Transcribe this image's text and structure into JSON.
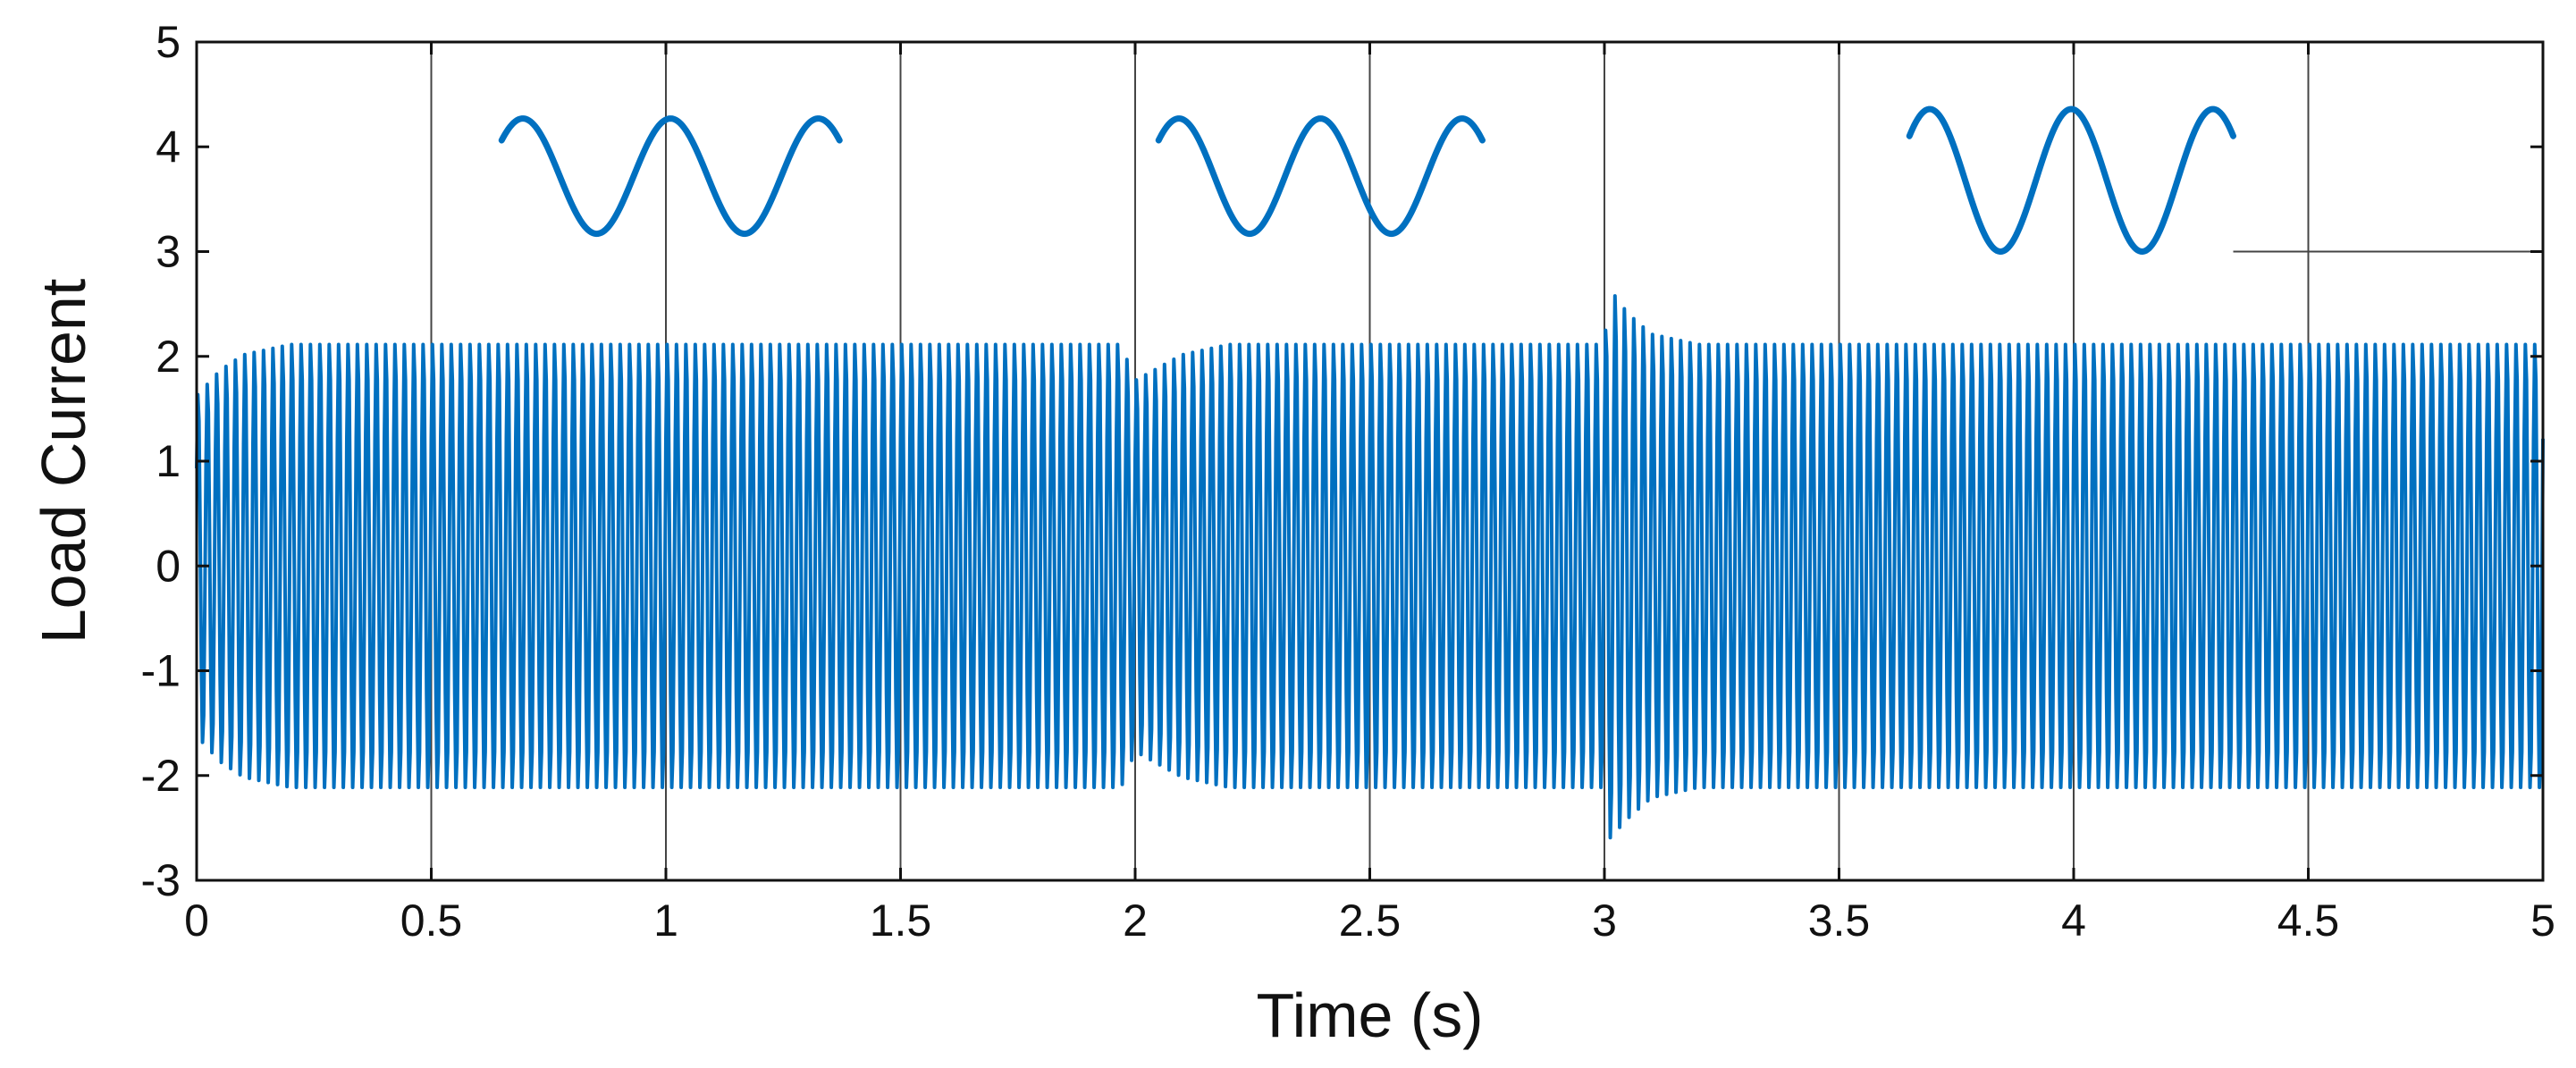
{
  "chart_data": {
    "type": "line",
    "xlabel": "Time (s)",
    "ylabel": "Load Current",
    "xlim": [
      0,
      5
    ],
    "ylim": [
      -3,
      5
    ],
    "x_ticks": [
      0,
      0.5,
      1,
      1.5,
      2,
      2.5,
      3,
      3.5,
      4,
      4.5,
      5
    ],
    "x_tick_labels": [
      "0",
      "0.5",
      "1",
      "1.5",
      "2",
      "2.5",
      "3",
      "3.5",
      "4",
      "4.5",
      "5"
    ],
    "y_ticks": [
      -3,
      -2,
      -1,
      0,
      1,
      2,
      3,
      4,
      5
    ],
    "y_tick_labels": [
      "-3",
      "-2",
      "-1",
      "0",
      "1",
      "2",
      "3",
      "4",
      "5"
    ],
    "grid": true,
    "series_color": "#0070c0",
    "series": [
      {
        "x": [
          0,
          0.05,
          0.1,
          0.2,
          1.97,
          2.0,
          2.1,
          2.2,
          3.0,
          3.01,
          3.05,
          3.1,
          3.2,
          5.0
        ],
        "envelope_max": [
          1.65,
          1.9,
          2.05,
          2.15,
          2.15,
          1.8,
          2.05,
          2.15,
          2.15,
          2.7,
          2.45,
          2.25,
          2.15,
          2.15
        ],
        "envelope_min": [
          -1.65,
          -1.9,
          -2.05,
          -2.15,
          -2.15,
          -1.8,
          -2.05,
          -2.15,
          -2.15,
          -2.65,
          -2.45,
          -2.25,
          -2.15,
          -2.15
        ]
      }
    ],
    "insets": [
      {
        "x_range": [
          0.65,
          1.37
        ],
        "center": 3.72,
        "amplitude": 0.55,
        "cycles": 2
      },
      {
        "x_range": [
          2.05,
          2.74
        ],
        "center": 3.72,
        "amplitude": 0.55,
        "cycles": 2
      },
      {
        "x_range": [
          3.65,
          4.34
        ],
        "center": 3.68,
        "amplitude": 0.68,
        "cycles": 2
      }
    ]
  }
}
